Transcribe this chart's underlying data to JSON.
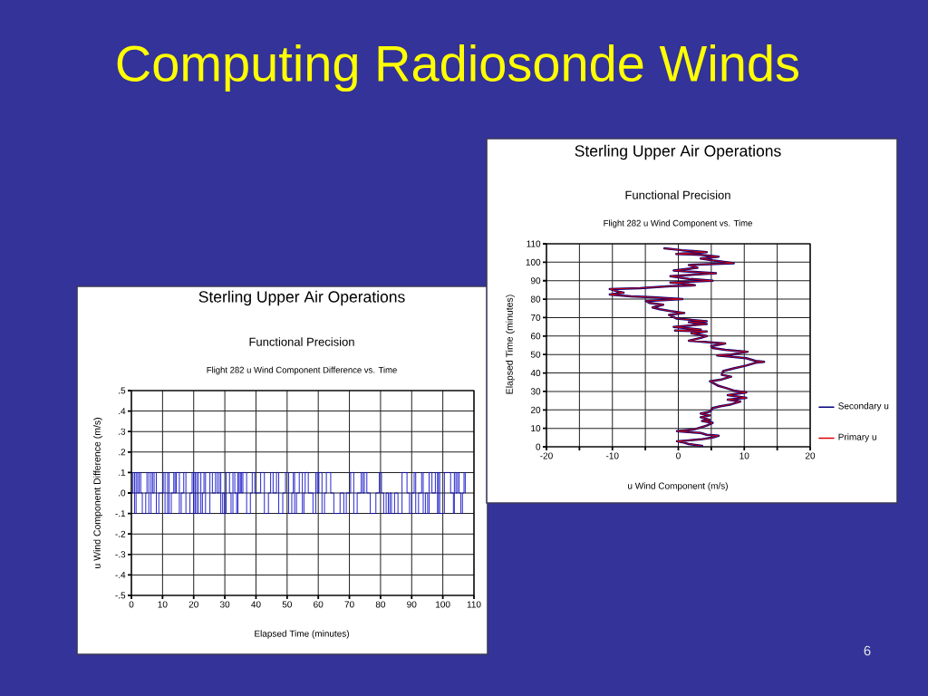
{
  "chart_data": [
    {
      "type": "other",
      "title": "Computing Radiosonde Winds",
      "annotations": [
        "6"
      ]
    },
    {
      "type": "step",
      "title": "Sterling Upper Air Operations",
      "subtitle": "Functional Precision",
      "annotations": [
        "Flight 282 u Wind Component Difference vs. Time"
      ],
      "xlabel": "Elapsed Time (minutes)",
      "ylabel": "u Wind Component Difference (m/s)",
      "x": [
        0,
        0.5,
        1,
        1.5,
        2,
        2.5,
        3,
        3.5,
        4.2,
        4.6,
        5,
        5.6,
        6.3,
        6.8,
        7.3,
        8,
        8.8,
        9.6,
        10.2,
        10.8,
        11.6,
        12.1,
        12.8,
        13.6,
        14,
        14.4,
        14.8,
        15.4,
        16,
        16.8,
        17.5,
        18.2,
        18.8,
        19.5,
        20,
        20.5,
        21,
        21.5,
        22.3,
        22.8,
        23.3,
        23.8,
        24.3,
        25.2,
        26,
        27,
        27.6,
        28.2,
        28.7,
        29.3,
        29.9,
        30.4,
        31,
        31.5,
        32,
        32.6,
        33.2,
        33.8,
        34.2,
        34.6,
        35,
        35.4,
        35.8,
        36.4,
        37,
        37.6,
        38.2,
        38.8,
        39.6,
        40.6,
        41.5,
        42.2,
        42.7,
        43.5,
        44,
        44.7,
        45.5,
        46.6,
        47.3,
        48,
        48.6,
        49.5,
        50.5,
        51,
        51.5,
        52,
        52.4,
        53,
        53.9,
        54.4,
        54.9,
        55.4,
        55.8,
        56.4,
        56.8,
        57.5,
        58.3,
        59.2,
        59.7,
        60.2,
        61.2,
        62,
        62.6,
        63.1,
        64,
        65,
        65.6,
        66.3,
        67,
        68.2,
        69,
        70.4,
        71.4,
        72.5,
        73.8,
        74.3,
        74.8,
        75.6,
        76.7,
        77.5,
        78.5,
        79.6,
        80.3,
        81,
        81.8,
        82.5,
        83,
        83.5,
        84.5,
        85.6,
        86.2,
        86.9,
        87.9,
        88.5,
        89.3,
        90,
        90.8,
        91.3,
        92.2,
        93.2,
        93.7,
        94.4,
        95.1,
        95.6,
        96.5,
        97.6,
        98.3,
        98.6,
        99,
        99.5,
        100,
        100.5,
        101,
        101.5,
        102.5,
        103.4,
        103.7,
        104.2,
        104.7,
        105.2,
        105.8,
        106.3,
        106.8,
        107.2
      ],
      "series": [
        {
          "color": "#1010c8",
          "values": [
            0,
            0.1,
            -0.1,
            0.1,
            0,
            0.1,
            0,
            -0.1,
            -0.1,
            0,
            0.1,
            -0.1,
            0.1,
            0,
            0.1,
            -0.1,
            0,
            0,
            0.1,
            -0.1,
            0.1,
            -0.1,
            0,
            0.1,
            0,
            0.1,
            0.1,
            -0.1,
            0,
            0.1,
            -0.1,
            -0.1,
            0,
            0.1,
            -0.1,
            0.1,
            -0.1,
            0.1,
            -0.1,
            0,
            0.1,
            -0.1,
            -0.1,
            0.1,
            0,
            0.1,
            0,
            0.1,
            -0.1,
            0,
            -0.1,
            0.1,
            0.1,
            0,
            -0.1,
            0.1,
            0,
            -0.1,
            0.1,
            0,
            0.1,
            0,
            0.1,
            0.1,
            -0.1,
            -0.1,
            0,
            0.1,
            0,
            0,
            0.1,
            0.1,
            -0.1,
            -0.1,
            0,
            0.1,
            0,
            0.1,
            -0.1,
            -0.1,
            0,
            0.1,
            -0.1,
            -0.1,
            0,
            0.1,
            -0.1,
            0,
            0.1,
            0.1,
            -0.1,
            0,
            0.1,
            0.1,
            0,
            0,
            -0.1,
            0.1,
            0,
            0.1,
            -0.1,
            0,
            0.1,
            0.1,
            0,
            -0.1,
            -0.1,
            -0.1,
            0,
            -0.1,
            0,
            0.1,
            -0.1,
            0,
            0.1,
            0,
            0.1,
            0,
            -0.1,
            -0.1,
            0,
            0.1,
            0,
            -0.1,
            0,
            -0.1,
            0,
            -0.1,
            0,
            -0.1,
            -0.1,
            0.1,
            0.1,
            0,
            -0.1,
            0,
            0.1,
            -0.1,
            0,
            0.1,
            -0.1,
            0,
            -0.1,
            0.1,
            0,
            0.1,
            -0.1,
            0.1,
            -0.1,
            -0.1,
            -0.1,
            0.1,
            0.1,
            0.1,
            0,
            -0.1,
            0.1,
            0,
            0.1,
            0,
            -0.1,
            0,
            0.1,
            0
          ]
        }
      ],
      "xlim": [
        0,
        110
      ],
      "xticks": [
        0,
        10,
        20,
        30,
        40,
        50,
        60,
        70,
        80,
        90,
        100,
        110
      ],
      "ylim": [
        -0.5,
        0.5
      ],
      "yticks": [
        {
          "value": 0.5,
          "label": ".5"
        },
        {
          "value": 0.4,
          "label": ".4"
        },
        {
          "value": 0.3,
          "label": ".3"
        },
        {
          "value": 0.2,
          "label": ".2"
        },
        {
          "value": 0.1,
          "label": ".1"
        },
        {
          "value": 0,
          "label": ".0"
        },
        {
          "value": -0.1,
          "label": "-.1"
        },
        {
          "value": -0.2,
          "label": "-.2"
        },
        {
          "value": -0.3,
          "label": "-.3"
        },
        {
          "value": -0.4,
          "label": "-.4"
        },
        {
          "value": -0.5,
          "label": "-.5"
        }
      ],
      "grid": true
    },
    {
      "type": "line",
      "title": "Sterling Upper Air Operations",
      "subtitle": "Functional Precision",
      "annotations": [
        "Flight 282 u Wind Component vs. Time"
      ],
      "xlabel": "u Wind Component (m/s)",
      "ylabel": "Elapsed Time (minutes)",
      "series": [
        {
          "name": "Secondary u",
          "color": "#000080",
          "x": [
            3.6,
            1.6,
            0.6,
            -0.2,
            1.6,
            3.4,
            5.2,
            6.1,
            4.3,
            3.4,
            1.5,
            -0.2,
            2.5,
            3.4,
            4.3,
            5.2,
            3.6,
            4.8,
            3.4,
            4.8,
            3.4,
            4.8,
            5.2,
            6.4,
            8.0,
            9.4,
            7.5,
            10.3,
            7.5,
            10.3,
            8.4,
            7.1,
            6.1,
            4.8,
            6.6,
            8.0,
            6.6,
            6.8,
            8.4,
            10.3,
            11.7,
            13.0,
            11.7,
            10.3,
            7.5,
            5.9,
            8.0,
            10.5,
            7.1,
            5.2,
            5.0,
            7.1,
            5.2,
            1.6,
            3.4,
            4.3,
            2.0,
            4.3,
            -0.5,
            3.4,
            -0.7,
            4.3,
            1.6,
            4.3,
            -0.3,
            -1.4,
            0.9,
            -1.2,
            -2.8,
            -3.9,
            -2.3,
            -4.4,
            -4.9,
            0.6,
            -3.9,
            -7.2,
            -10.4,
            -8.3,
            -9.0,
            -10.4,
            -5.8,
            -1.2,
            2.5,
            0.6,
            -1.2,
            5.2,
            1.6,
            -1.2,
            5.7,
            -0.7,
            2.9,
            1.6,
            8.4,
            5.2,
            3.4,
            6.1,
            3.4,
            -0.3,
            4.3,
            0.6,
            -2.1
          ],
          "values": [
            0.5,
            1.5,
            2.5,
            3,
            3.5,
            4,
            5,
            6,
            6.5,
            7.5,
            8,
            8.5,
            9.5,
            10.5,
            11.5,
            13,
            14,
            14.5,
            16,
            17,
            18,
            19,
            21,
            22,
            23,
            24.5,
            25.5,
            26.5,
            28,
            29.5,
            30.5,
            32,
            33,
            35.5,
            36.5,
            38,
            39,
            41,
            42.5,
            44,
            45.5,
            46,
            46.5,
            48,
            49,
            49.5,
            50,
            51.5,
            52.5,
            53.5,
            54.5,
            56,
            56.5,
            57.5,
            59,
            60,
            61.5,
            62.5,
            63,
            63.5,
            65,
            66.5,
            67.5,
            68,
            69.5,
            71.5,
            72.5,
            73.5,
            74.5,
            75.5,
            77,
            78,
            79,
            80,
            81,
            81.5,
            82.5,
            83.5,
            84,
            85.5,
            86,
            87,
            87.5,
            88.5,
            89,
            90,
            91,
            92.5,
            94,
            95.5,
            97,
            98.5,
            99.5,
            101,
            102,
            103,
            104,
            104.5,
            105.5,
            106.5,
            107.5
          ]
        },
        {
          "name": "Primary u",
          "color": "#dd0000",
          "x": [
            3.6,
            1.6,
            0.6,
            -0.2,
            1.6,
            3.4,
            5.2,
            6.1,
            4.3,
            3.4,
            1.5,
            -0.2,
            2.5,
            3.4,
            4.3,
            5.2,
            3.6,
            4.8,
            3.4,
            4.8,
            3.4,
            4.8,
            5.2,
            6.4,
            8.0,
            9.4,
            7.5,
            10.3,
            7.5,
            10.3,
            8.4,
            7.1,
            6.1,
            4.8,
            6.6,
            8.0,
            6.6,
            6.8,
            8.4,
            10.3,
            11.7,
            13.0,
            11.7,
            10.3,
            7.5,
            5.9,
            8.0,
            10.5,
            7.1,
            5.2,
            5.0,
            7.1,
            5.2,
            1.6,
            3.4,
            4.3,
            2.0,
            4.3,
            -0.5,
            3.4,
            -0.7,
            4.3,
            1.6,
            4.3,
            -0.3,
            -1.4,
            0.9,
            -1.2,
            -2.8,
            -3.9,
            -2.3,
            -4.4,
            -4.9,
            0.6,
            -3.9,
            -7.2,
            -10.4,
            -8.3,
            -9.0,
            -10.4,
            -5.8,
            -1.2,
            2.5,
            0.6,
            -1.2,
            5.2,
            1.6,
            -1.2,
            5.7,
            -0.7,
            2.9,
            1.6,
            8.4,
            5.2,
            3.4,
            6.1,
            3.4,
            -0.3,
            4.3,
            0.6,
            -2.1
          ],
          "values": [
            0.5,
            1.5,
            2.5,
            3,
            3.5,
            4,
            5,
            6,
            6.5,
            7.5,
            8,
            8.5,
            9.5,
            10.5,
            11.5,
            13,
            14,
            14.5,
            16,
            17,
            18,
            19,
            21,
            22,
            23,
            24.5,
            25.5,
            26.5,
            28,
            29.5,
            30.5,
            32,
            33,
            35.5,
            36.5,
            38,
            39,
            41,
            42.5,
            44,
            45.5,
            46,
            46.5,
            48,
            49,
            49.5,
            50,
            51.5,
            52.5,
            53.5,
            54.5,
            56,
            56.5,
            57.5,
            59,
            60,
            61.5,
            62.5,
            63,
            63.5,
            65,
            66.5,
            67.5,
            68,
            69.5,
            71.5,
            72.5,
            73.5,
            74.5,
            75.5,
            77,
            78,
            79,
            80,
            81,
            81.5,
            82.5,
            83.5,
            84,
            85.5,
            86,
            87,
            87.5,
            88.5,
            89,
            90,
            91,
            92.5,
            94,
            95.5,
            97,
            98.5,
            99.5,
            101,
            102,
            103,
            104,
            104.5,
            105.5,
            106.5,
            107.5
          ]
        }
      ],
      "xlim": [
        -20,
        20
      ],
      "xticks": [
        -20,
        {
          "value": -15,
          "label": null
        },
        -10,
        {
          "value": -5,
          "label": null
        },
        0,
        {
          "value": 5,
          "label": null
        },
        10,
        {
          "value": 15,
          "label": null
        },
        20
      ],
      "ylim": [
        0,
        110
      ],
      "yticks": [
        0,
        10,
        20,
        30,
        40,
        50,
        60,
        70,
        80,
        90,
        100,
        110
      ],
      "grid": true,
      "legend": "bottom right"
    }
  ]
}
